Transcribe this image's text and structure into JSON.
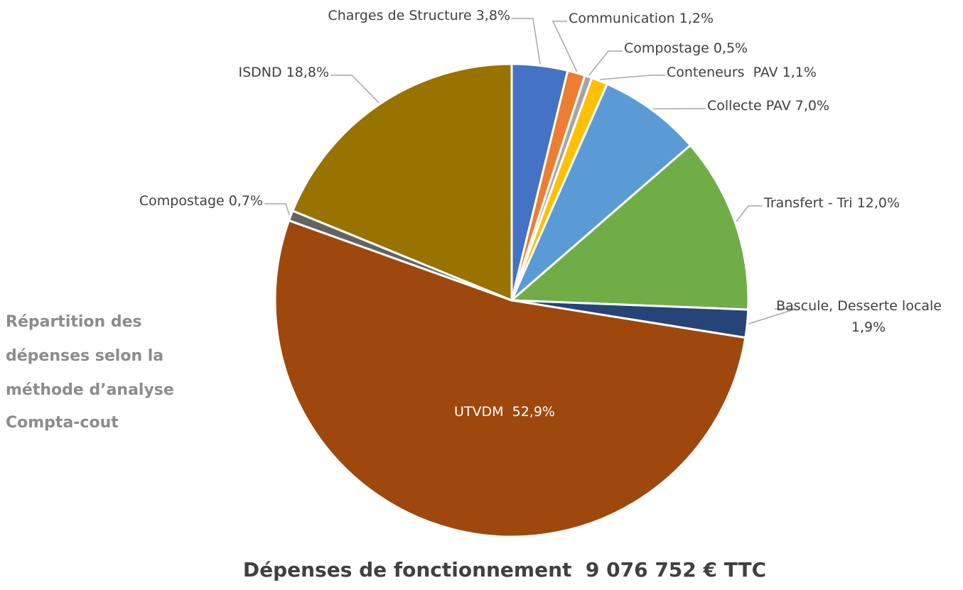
{
  "chart_data": {
    "type": "pie",
    "title": "Dépenses de fonctionnement  9 076 752 € TTC",
    "subtitle": [
      "Répartition des",
      "dépenses selon la",
      "méthode d’analyse",
      "Compta-cout"
    ],
    "categories": [
      "Charges de Structure",
      "Communication",
      "Compostage",
      "Conteneurs  PAV",
      "Collecte PAV",
      "Transfert - Tri",
      "Bascule, Desserte locale",
      "UTVDM ",
      "Compostage",
      "ISDND"
    ],
    "values": [
      3.8,
      1.2,
      0.5,
      1.1,
      7.0,
      12.0,
      1.9,
      52.9,
      0.7,
      18.8
    ],
    "value_labels": [
      "3,8%",
      "1,2%",
      "0,5%",
      "1,1%",
      "7,0%",
      "12,0%",
      "1,9%",
      "52,9%",
      "0,7%",
      "18,8%"
    ],
    "colors": [
      "#4472c4",
      "#ed7d31",
      "#a5a5a5",
      "#ffc000",
      "#5b9bd5",
      "#70ad47",
      "#264478",
      "#9e480e",
      "#636363",
      "#997300"
    ]
  }
}
